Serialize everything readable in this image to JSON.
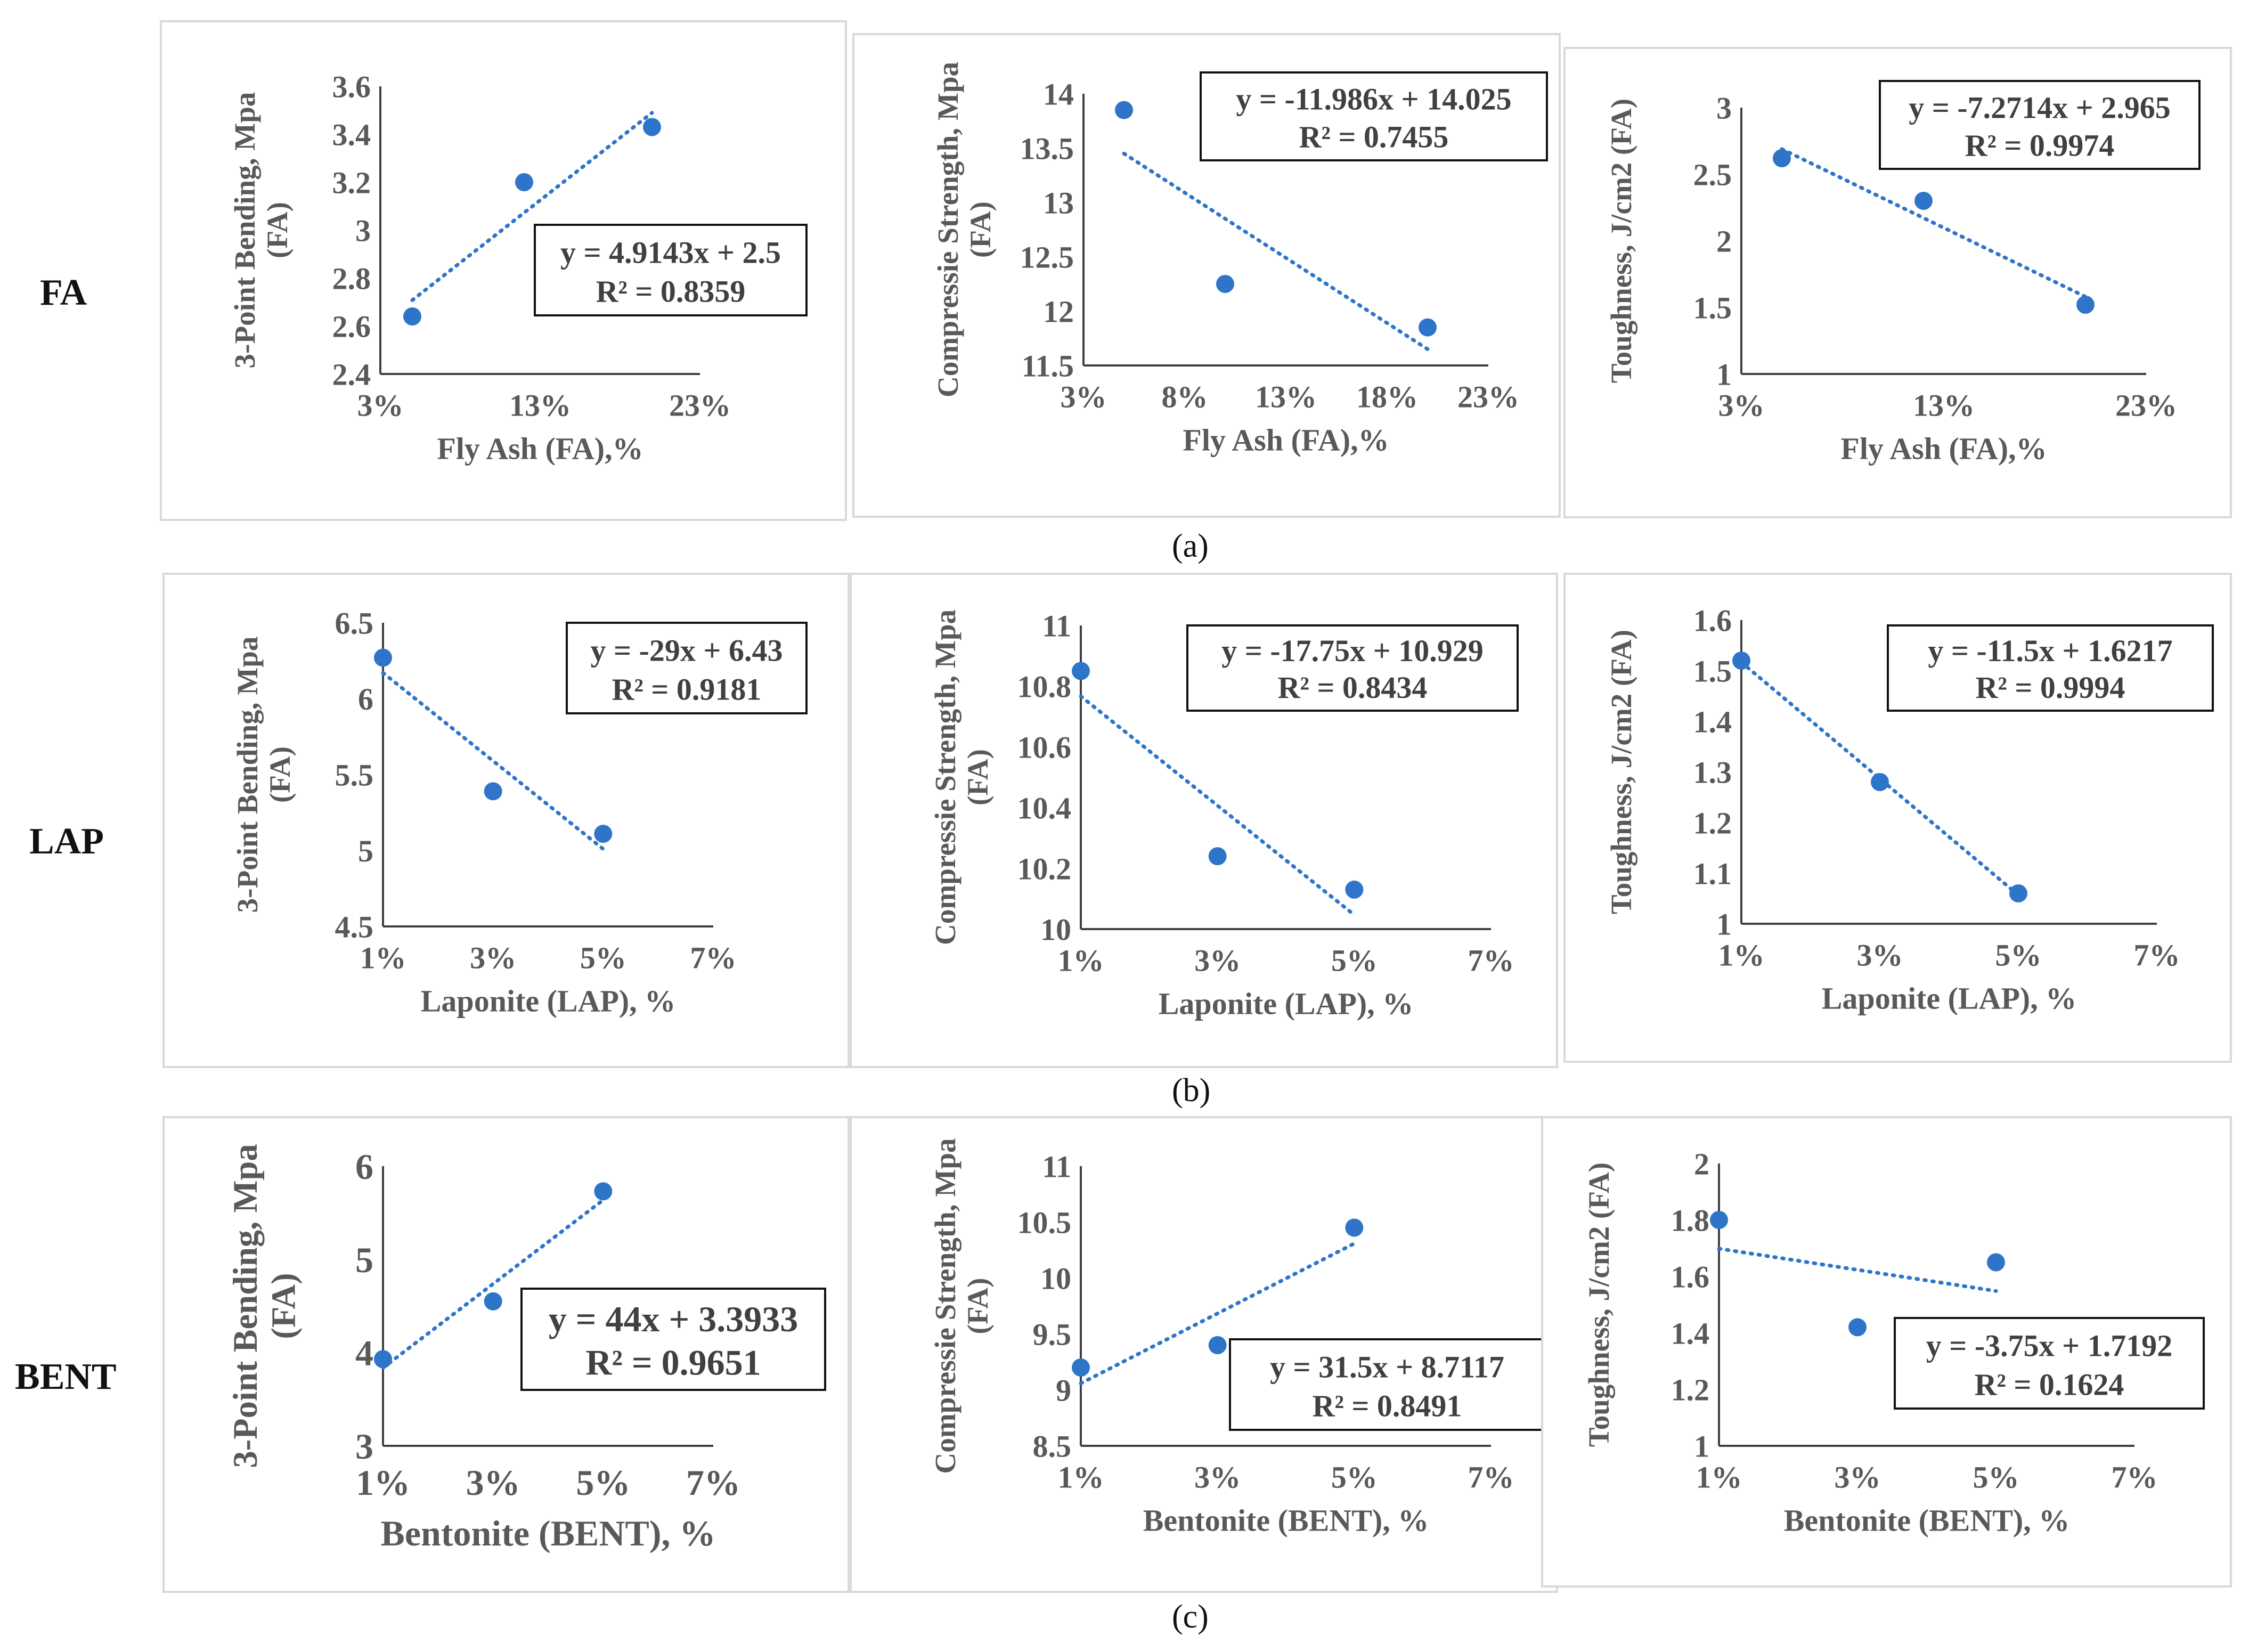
{
  "rows": [
    {
      "label": "FA",
      "caption": "(a)"
    },
    {
      "label": "LAP",
      "caption": "(b)"
    },
    {
      "label": "BENT",
      "caption": "(c)"
    }
  ],
  "series_color": "#2e75c9",
  "chart_data": [
    {
      "type": "scatter",
      "row": "FA",
      "ylabel": "3-Point Bending, Mpa (FA)",
      "xlabel": "Fly Ash (FA),%",
      "x": [
        5,
        12,
        20
      ],
      "y": [
        2.64,
        3.2,
        3.43
      ],
      "xlim": [
        3,
        23
      ],
      "ylim": [
        2.4,
        3.6
      ],
      "xticks": [
        3,
        13,
        23
      ],
      "xtick_labels": [
        "3%",
        "13%",
        "23%"
      ],
      "yticks": [
        2.4,
        2.6,
        2.8,
        3,
        3.2,
        3.4,
        3.6
      ],
      "ytick_labels": [
        "2.4",
        "2.6",
        "2.8",
        "3",
        "3.2",
        "3.4",
        "3.6"
      ],
      "trendline": {
        "equation": "y = 4.9143x + 2.5",
        "r2": "R² = 0.8359"
      }
    },
    {
      "type": "scatter",
      "row": "FA",
      "ylabel": "Compressie Strength, Mpa (FA)",
      "xlabel": "Fly Ash (FA),%",
      "x": [
        5,
        10,
        20
      ],
      "y": [
        13.85,
        12.25,
        11.85
      ],
      "xlim": [
        3,
        23
      ],
      "ylim": [
        11.5,
        14
      ],
      "xticks": [
        3,
        8,
        13,
        18,
        23
      ],
      "xtick_labels": [
        "3%",
        "8%",
        "13%",
        "18%",
        "23%"
      ],
      "yticks": [
        11.5,
        12,
        12.5,
        13,
        13.5,
        14
      ],
      "ytick_labels": [
        "11.5",
        "12",
        "12.5",
        "13",
        "13.5",
        "14"
      ],
      "trendline": {
        "equation": "y = -11.986x + 14.025",
        "r2": "R² = 0.7455"
      }
    },
    {
      "type": "scatter",
      "row": "FA",
      "ylabel": "Toughness, J/cm2 (FA)",
      "xlabel": "Fly Ash (FA),%",
      "x": [
        5,
        12,
        20
      ],
      "y": [
        2.62,
        2.3,
        1.52
      ],
      "xlim": [
        3,
        23
      ],
      "ylim": [
        1,
        3
      ],
      "xticks": [
        3,
        13,
        23
      ],
      "xtick_labels": [
        "3%",
        "13%",
        "23%"
      ],
      "yticks": [
        1,
        1.5,
        2,
        2.5,
        3
      ],
      "ytick_labels": [
        "1",
        "1.5",
        "2",
        "2.5",
        "3"
      ],
      "trendline": {
        "equation": "y = -7.2714x + 2.965",
        "r2": "R² = 0.9974"
      }
    },
    {
      "type": "scatter",
      "row": "LAP",
      "ylabel": "3-Point Bending, Mpa (FA)",
      "xlabel": "Laponite (LAP), %",
      "x": [
        1,
        3,
        5
      ],
      "y": [
        6.27,
        5.39,
        5.11
      ],
      "xlim": [
        1,
        7
      ],
      "ylim": [
        4.5,
        6.5
      ],
      "xticks": [
        1,
        3,
        5,
        7
      ],
      "xtick_labels": [
        "1%",
        "3%",
        "5%",
        "7%"
      ],
      "yticks": [
        4.5,
        5,
        5.5,
        6,
        6.5
      ],
      "ytick_labels": [
        "4.5",
        "5",
        "5.5",
        "6",
        "6.5"
      ],
      "trendline": {
        "equation": "y = -29x + 6.43",
        "r2": "R² = 0.9181"
      }
    },
    {
      "type": "scatter",
      "row": "LAP",
      "ylabel": "Compressie Strength, Mpa (FA)",
      "xlabel": "Laponite (LAP), %",
      "x": [
        1,
        3,
        5
      ],
      "y": [
        10.85,
        10.24,
        10.13
      ],
      "xlim": [
        1,
        7
      ],
      "ylim": [
        10,
        11
      ],
      "xticks": [
        1,
        3,
        5,
        7
      ],
      "xtick_labels": [
        "1%",
        "3%",
        "5%",
        "7%"
      ],
      "yticks": [
        10,
        10.2,
        10.4,
        10.6,
        10.8,
        11
      ],
      "ytick_labels": [
        "10",
        "10.2",
        "10.4",
        "10.6",
        "10.8",
        "11"
      ],
      "trendline": {
        "equation": "y = -17.75x + 10.929",
        "r2": "R² = 0.8434"
      }
    },
    {
      "type": "scatter",
      "row": "LAP",
      "ylabel": "Toughness, J/cm2 (FA)",
      "xlabel": "Laponite (LAP), %",
      "x": [
        1,
        3,
        5
      ],
      "y": [
        1.52,
        1.28,
        1.06
      ],
      "xlim": [
        1,
        7
      ],
      "ylim": [
        1,
        1.6
      ],
      "xticks": [
        1,
        3,
        5,
        7
      ],
      "xtick_labels": [
        "1%",
        "3%",
        "5%",
        "7%"
      ],
      "yticks": [
        1,
        1.1,
        1.2,
        1.3,
        1.4,
        1.5,
        1.6
      ],
      "ytick_labels": [
        "1",
        "1.1",
        "1.2",
        "1.3",
        "1.4",
        "1.5",
        "1.6"
      ],
      "trendline": {
        "equation": "y = -11.5x + 1.6217",
        "r2": "R² = 0.9994"
      }
    },
    {
      "type": "scatter",
      "row": "BENT",
      "ylabel": "3-Point Bending, Mpa (FA)",
      "xlabel": "Bentonite (BENT), %",
      "x": [
        1,
        3,
        5
      ],
      "y": [
        3.93,
        4.55,
        5.73
      ],
      "xlim": [
        1,
        7
      ],
      "ylim": [
        3,
        6
      ],
      "xticks": [
        1,
        3,
        5,
        7
      ],
      "xtick_labels": [
        "1%",
        "3%",
        "5%",
        "7%"
      ],
      "yticks": [
        3,
        4,
        5,
        6
      ],
      "ytick_labels": [
        "3",
        "4",
        "5",
        "6"
      ],
      "trendline": {
        "equation": "y = 44x + 3.3933",
        "r2": "R² = 0.9651"
      }
    },
    {
      "type": "scatter",
      "row": "BENT",
      "ylabel": "Compressie Strength, Mpa (FA)",
      "xlabel": "Bentonite (BENT), %",
      "x": [
        1,
        3,
        5
      ],
      "y": [
        9.2,
        9.4,
        10.45
      ],
      "xlim": [
        1,
        7
      ],
      "ylim": [
        8.5,
        11
      ],
      "xticks": [
        1,
        3,
        5,
        7
      ],
      "xtick_labels": [
        "1%",
        "3%",
        "5%",
        "7%"
      ],
      "yticks": [
        8.5,
        9,
        9.5,
        10,
        10.5,
        11
      ],
      "ytick_labels": [
        "8.5",
        "9",
        "9.5",
        "10",
        "10.5",
        "11"
      ],
      "trendline": {
        "equation": "y = 31.5x + 8.7117",
        "r2": "R² = 0.8491"
      }
    },
    {
      "type": "scatter",
      "row": "BENT",
      "ylabel": "Toughness, J/cm2 (FA)",
      "xlabel": "Bentonite (BENT), %",
      "x": [
        1,
        3,
        5
      ],
      "y": [
        1.8,
        1.42,
        1.65
      ],
      "xlim": [
        1,
        7
      ],
      "ylim": [
        1,
        2
      ],
      "xticks": [
        1,
        3,
        5,
        7
      ],
      "xtick_labels": [
        "1%",
        "3%",
        "5%",
        "7%"
      ],
      "yticks": [
        1,
        1.2,
        1.4,
        1.6,
        1.8,
        2
      ],
      "ytick_labels": [
        "1",
        "1.2",
        "1.4",
        "1.6",
        "1.8",
        "2"
      ],
      "trendline": {
        "equation": "y = -3.75x + 1.7192",
        "r2": "R² = 0.1624"
      }
    }
  ]
}
